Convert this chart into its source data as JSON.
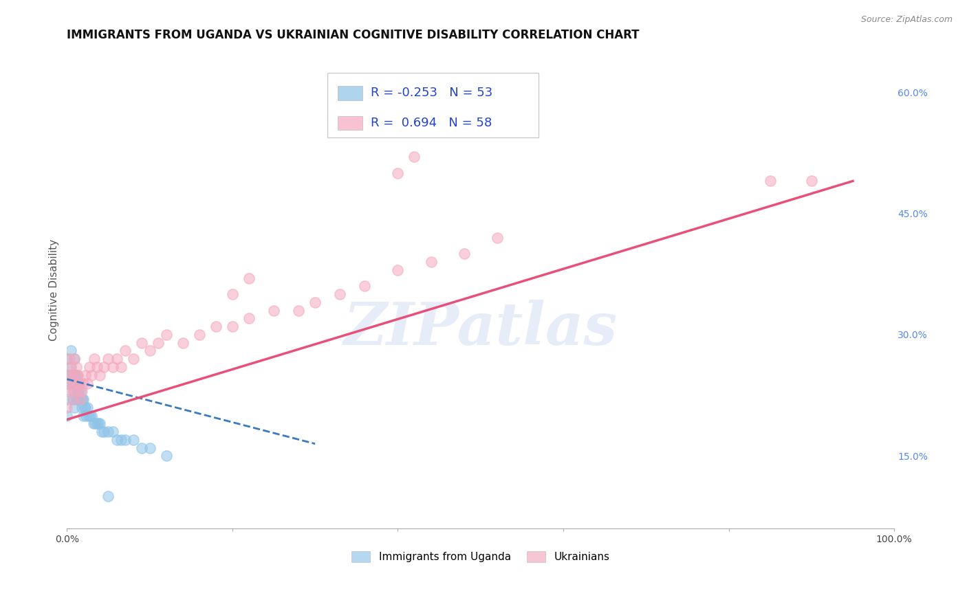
{
  "title": "IMMIGRANTS FROM UGANDA VS UKRAINIAN COGNITIVE DISABILITY CORRELATION CHART",
  "source": "Source: ZipAtlas.com",
  "ylabel": "Cognitive Disability",
  "watermark": "ZIPatlas",
  "xlim": [
    0.0,
    1.0
  ],
  "ylim": [
    0.06,
    0.65
  ],
  "xticks": [
    0.0,
    0.2,
    0.4,
    0.6,
    0.8,
    1.0
  ],
  "xticklabels": [
    "0.0%",
    "",
    "",
    "",
    "",
    "100.0%"
  ],
  "yticks_right": [
    0.15,
    0.3,
    0.45,
    0.6
  ],
  "ytick_labels_right": [
    "15.0%",
    "30.0%",
    "45.0%",
    "60.0%"
  ],
  "blue_color": "#8ec4e8",
  "pink_color": "#f4a8be",
  "blue_line_color": "#3a7abf",
  "pink_line_color": "#e8507a",
  "background_color": "#ffffff",
  "grid_color": "#cccccc",
  "blue_scatter_x": [
    0.0,
    0.0,
    0.0,
    0.0,
    0.0,
    0.005,
    0.005,
    0.007,
    0.007,
    0.007,
    0.009,
    0.009,
    0.009,
    0.009,
    0.011,
    0.011,
    0.012,
    0.012,
    0.013,
    0.013,
    0.014,
    0.015,
    0.015,
    0.016,
    0.017,
    0.018,
    0.019,
    0.02,
    0.02,
    0.021,
    0.022,
    0.023,
    0.025,
    0.026,
    0.028,
    0.03,
    0.032,
    0.034,
    0.036,
    0.038,
    0.04,
    0.042,
    0.045,
    0.05,
    0.055,
    0.06,
    0.065,
    0.07,
    0.08,
    0.09,
    0.1,
    0.12,
    0.05
  ],
  "blue_scatter_y": [
    0.27,
    0.25,
    0.24,
    0.22,
    0.2,
    0.28,
    0.26,
    0.25,
    0.24,
    0.22,
    0.27,
    0.25,
    0.23,
    0.21,
    0.24,
    0.22,
    0.25,
    0.23,
    0.24,
    0.22,
    0.23,
    0.24,
    0.22,
    0.23,
    0.22,
    0.21,
    0.22,
    0.22,
    0.2,
    0.21,
    0.21,
    0.2,
    0.21,
    0.2,
    0.2,
    0.2,
    0.19,
    0.19,
    0.19,
    0.19,
    0.19,
    0.18,
    0.18,
    0.18,
    0.18,
    0.17,
    0.17,
    0.17,
    0.17,
    0.16,
    0.16,
    0.15,
    0.1
  ],
  "pink_scatter_x": [
    0.0,
    0.0,
    0.0,
    0.002,
    0.003,
    0.004,
    0.005,
    0.006,
    0.007,
    0.008,
    0.009,
    0.01,
    0.011,
    0.012,
    0.013,
    0.014,
    0.015,
    0.016,
    0.018,
    0.02,
    0.022,
    0.025,
    0.027,
    0.03,
    0.033,
    0.036,
    0.04,
    0.045,
    0.05,
    0.055,
    0.06,
    0.065,
    0.07,
    0.08,
    0.09,
    0.1,
    0.11,
    0.12,
    0.14,
    0.16,
    0.18,
    0.2,
    0.22,
    0.25,
    0.28,
    0.3,
    0.33,
    0.36,
    0.4,
    0.44,
    0.48,
    0.52,
    0.4,
    0.42,
    0.2,
    0.22,
    0.85,
    0.9
  ],
  "pink_scatter_y": [
    0.25,
    0.23,
    0.21,
    0.24,
    0.27,
    0.26,
    0.25,
    0.24,
    0.23,
    0.22,
    0.27,
    0.25,
    0.26,
    0.24,
    0.25,
    0.23,
    0.24,
    0.22,
    0.23,
    0.24,
    0.25,
    0.24,
    0.26,
    0.25,
    0.27,
    0.26,
    0.25,
    0.26,
    0.27,
    0.26,
    0.27,
    0.26,
    0.28,
    0.27,
    0.29,
    0.28,
    0.29,
    0.3,
    0.29,
    0.3,
    0.31,
    0.31,
    0.32,
    0.33,
    0.33,
    0.34,
    0.35,
    0.36,
    0.38,
    0.39,
    0.4,
    0.42,
    0.5,
    0.52,
    0.35,
    0.37,
    0.49,
    0.49
  ],
  "blue_trend_x": [
    0.0,
    0.3
  ],
  "blue_trend_y": [
    0.245,
    0.165
  ],
  "pink_trend_x": [
    0.0,
    0.95
  ],
  "pink_trend_y": [
    0.195,
    0.49
  ],
  "title_fontsize": 12,
  "axis_label_fontsize": 11,
  "tick_fontsize": 10,
  "legend_fontsize": 13
}
